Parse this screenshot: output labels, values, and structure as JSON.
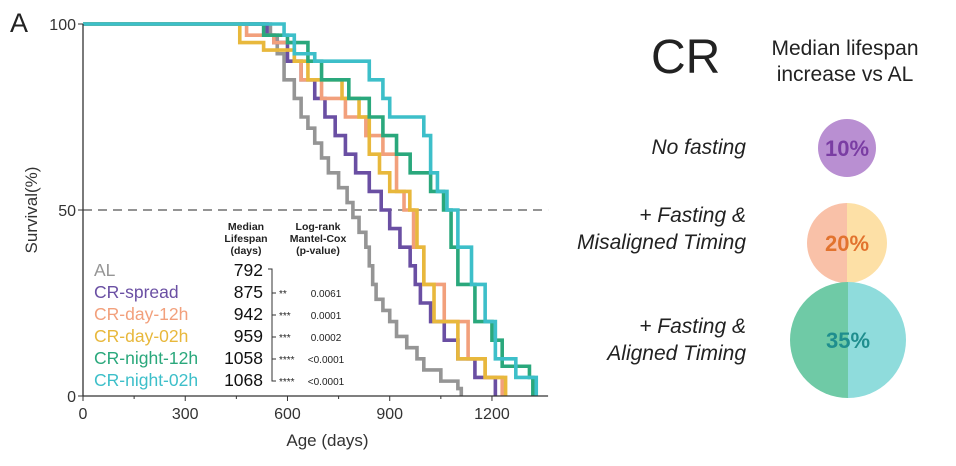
{
  "panel_label": "A",
  "chart_data": {
    "type": "line",
    "subtype": "kaplan-meier step",
    "xlabel": "Age (days)",
    "ylabel": "Survival(%)",
    "xlim": [
      0,
      1350
    ],
    "ylim": [
      0,
      100
    ],
    "xticks": [
      "0",
      "300",
      "600",
      "900",
      "1200"
    ],
    "yticks": [
      "0",
      "50",
      "100"
    ],
    "reference_line": {
      "y": 50,
      "style": "dashed"
    },
    "grid": false,
    "table": {
      "header_median": [
        "Median",
        "Lifespan",
        "(days)"
      ],
      "header_test": [
        "Log-rank",
        "Mantel-Cox",
        "(p-value)"
      ]
    },
    "series": [
      {
        "name": "AL",
        "color": "#959595",
        "median": "792",
        "stars": "",
        "p": "",
        "points": [
          [
            0,
            100
          ],
          [
            550,
            97
          ],
          [
            570,
            92
          ],
          [
            590,
            85
          ],
          [
            620,
            80
          ],
          [
            640,
            75
          ],
          [
            660,
            72
          ],
          [
            680,
            68
          ],
          [
            700,
            64
          ],
          [
            720,
            60
          ],
          [
            750,
            56
          ],
          [
            775,
            52
          ],
          [
            792,
            48
          ],
          [
            810,
            44
          ],
          [
            830,
            40
          ],
          [
            840,
            35
          ],
          [
            850,
            30
          ],
          [
            860,
            26
          ],
          [
            880,
            23
          ],
          [
            900,
            20
          ],
          [
            920,
            16
          ],
          [
            950,
            13
          ],
          [
            980,
            10
          ],
          [
            1000,
            7
          ],
          [
            1050,
            4
          ],
          [
            1100,
            2
          ],
          [
            1110,
            0
          ]
        ]
      },
      {
        "name": "CR-spread",
        "color": "#6a4fa3",
        "median": "875",
        "stars": "**",
        "p": "0.0061",
        "points": [
          [
            0,
            100
          ],
          [
            540,
            97
          ],
          [
            560,
            95
          ],
          [
            600,
            90
          ],
          [
            640,
            85
          ],
          [
            680,
            80
          ],
          [
            710,
            75
          ],
          [
            740,
            70
          ],
          [
            770,
            65
          ],
          [
            800,
            60
          ],
          [
            840,
            55
          ],
          [
            875,
            50
          ],
          [
            900,
            45
          ],
          [
            930,
            40
          ],
          [
            960,
            35
          ],
          [
            975,
            30
          ],
          [
            990,
            25
          ],
          [
            1020,
            20
          ],
          [
            1060,
            15
          ],
          [
            1100,
            10
          ],
          [
            1150,
            5
          ],
          [
            1210,
            0
          ]
        ]
      },
      {
        "name": "CR-day-12h",
        "color": "#f2a07c",
        "median": "942",
        "stars": "***",
        "p": "0.0001",
        "points": [
          [
            0,
            100
          ],
          [
            480,
            97
          ],
          [
            560,
            95
          ],
          [
            620,
            90
          ],
          [
            640,
            85
          ],
          [
            700,
            80
          ],
          [
            770,
            75
          ],
          [
            830,
            70
          ],
          [
            880,
            65
          ],
          [
            920,
            55
          ],
          [
            942,
            50
          ],
          [
            970,
            40
          ],
          [
            1000,
            30
          ],
          [
            1060,
            20
          ],
          [
            1130,
            10
          ],
          [
            1180,
            5
          ],
          [
            1230,
            0
          ]
        ]
      },
      {
        "name": "CR-day-02h",
        "color": "#e8b83c",
        "median": "959",
        "stars": "***",
        "p": "0.0002",
        "points": [
          [
            0,
            100
          ],
          [
            460,
            95
          ],
          [
            530,
            93
          ],
          [
            620,
            90
          ],
          [
            660,
            85
          ],
          [
            760,
            80
          ],
          [
            810,
            75
          ],
          [
            840,
            65
          ],
          [
            870,
            60
          ],
          [
            900,
            55
          ],
          [
            959,
            50
          ],
          [
            980,
            40
          ],
          [
            1000,
            30
          ],
          [
            1030,
            20
          ],
          [
            1100,
            10
          ],
          [
            1180,
            5
          ],
          [
            1240,
            0
          ]
        ]
      },
      {
        "name": "CR-night-12h",
        "color": "#2aa87c",
        "median": "1058",
        "stars": "****",
        "p": "<0.0001",
        "points": [
          [
            0,
            100
          ],
          [
            530,
            97
          ],
          [
            600,
            95
          ],
          [
            660,
            90
          ],
          [
            700,
            85
          ],
          [
            780,
            80
          ],
          [
            840,
            75
          ],
          [
            880,
            70
          ],
          [
            920,
            65
          ],
          [
            960,
            60
          ],
          [
            1020,
            55
          ],
          [
            1058,
            50
          ],
          [
            1080,
            40
          ],
          [
            1100,
            30
          ],
          [
            1150,
            20
          ],
          [
            1200,
            15
          ],
          [
            1230,
            8
          ],
          [
            1310,
            5
          ],
          [
            1320,
            0
          ]
        ]
      },
      {
        "name": "CR-night-02h",
        "color": "#3dbfc9",
        "median": "1068",
        "stars": "****",
        "p": "<0.0001",
        "points": [
          [
            0,
            100
          ],
          [
            590,
            97
          ],
          [
            620,
            92
          ],
          [
            680,
            90
          ],
          [
            840,
            85
          ],
          [
            880,
            80
          ],
          [
            900,
            75
          ],
          [
            1000,
            70
          ],
          [
            1020,
            60
          ],
          [
            1040,
            55
          ],
          [
            1068,
            50
          ],
          [
            1100,
            40
          ],
          [
            1140,
            30
          ],
          [
            1180,
            20
          ],
          [
            1210,
            10
          ],
          [
            1270,
            5
          ],
          [
            1330,
            0
          ]
        ]
      }
    ]
  },
  "summary": {
    "title": "CR",
    "subtitle": [
      "Median lifespan",
      "increase vs AL"
    ],
    "items": [
      {
        "label": [
          "No fasting"
        ],
        "value": "10%",
        "colors": [
          "#b98fd2",
          "#b98fd2"
        ],
        "text_color": "#7a3da3"
      },
      {
        "label": [
          "+ Fasting &",
          "Misaligned Timing"
        ],
        "value": "20%",
        "colors": [
          "#f9c1a8",
          "#fde0a6"
        ],
        "text_color": "#e2732f"
      },
      {
        "label": [
          "+ Fasting &",
          "Aligned Timing"
        ],
        "value": "35%",
        "colors": [
          "#6fcaa6",
          "#8fdcdc"
        ],
        "text_color": "#1f8e8e"
      }
    ]
  }
}
